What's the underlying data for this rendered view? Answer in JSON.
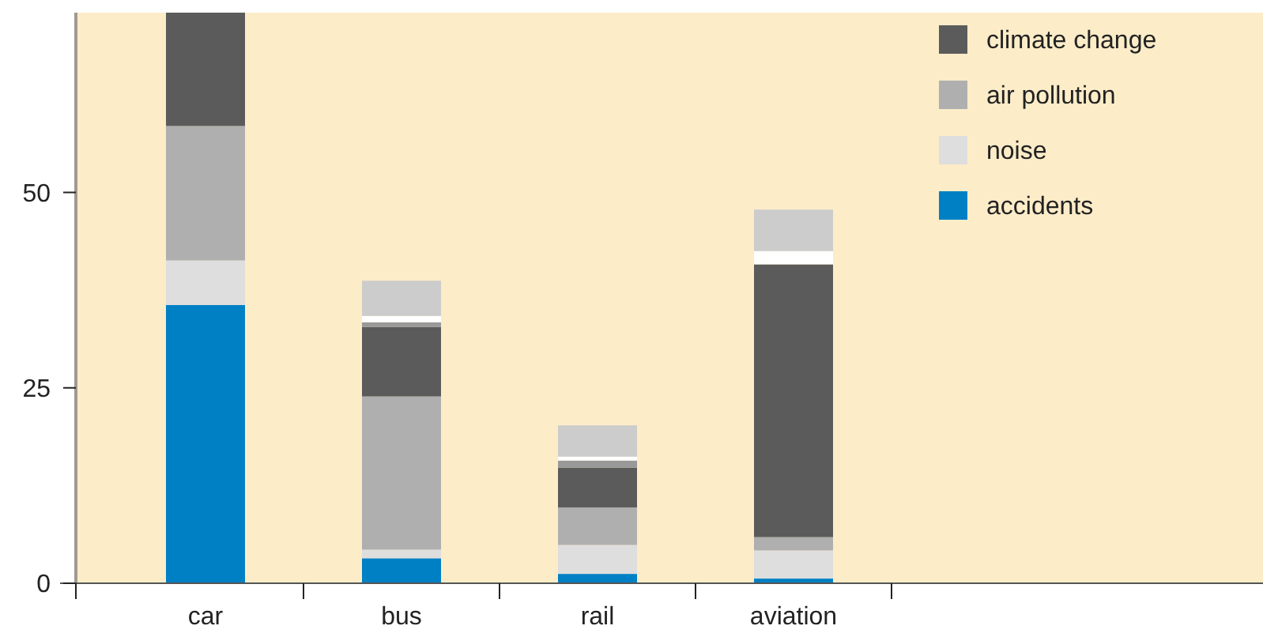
{
  "chart_data": {
    "type": "bar",
    "stacked": true,
    "categories": [
      "car",
      "bus",
      "rail",
      "aviation"
    ],
    "series": [
      {
        "name": "accidents",
        "color": "#0080c4",
        "values": [
          35.6,
          3.2,
          1.2,
          0.6
        ]
      },
      {
        "name": "noise",
        "color": "#dedede",
        "values": [
          5.7,
          1.1,
          3.7,
          3.6
        ]
      },
      {
        "name": "air pollution",
        "color": "#afafaf",
        "values": [
          17.2,
          19.6,
          4.8,
          1.7
        ]
      },
      {
        "name": "climate change",
        "color": "#5b5b5b",
        "values": [
          14.5,
          8.9,
          5.1,
          34.9
        ]
      },
      {
        "color": "#999999",
        "values": [
          0,
          0.6,
          0.9,
          0
        ]
      },
      {
        "color": "#ffffff",
        "values": [
          0,
          0.8,
          0.5,
          1.7
        ]
      },
      {
        "color": "#cccccc",
        "values": [
          0,
          4.5,
          4.0,
          5.3
        ]
      }
    ],
    "ylim": [
      0,
      73
    ],
    "yticks": [
      0,
      25,
      50
    ],
    "legend": "top right"
  }
}
